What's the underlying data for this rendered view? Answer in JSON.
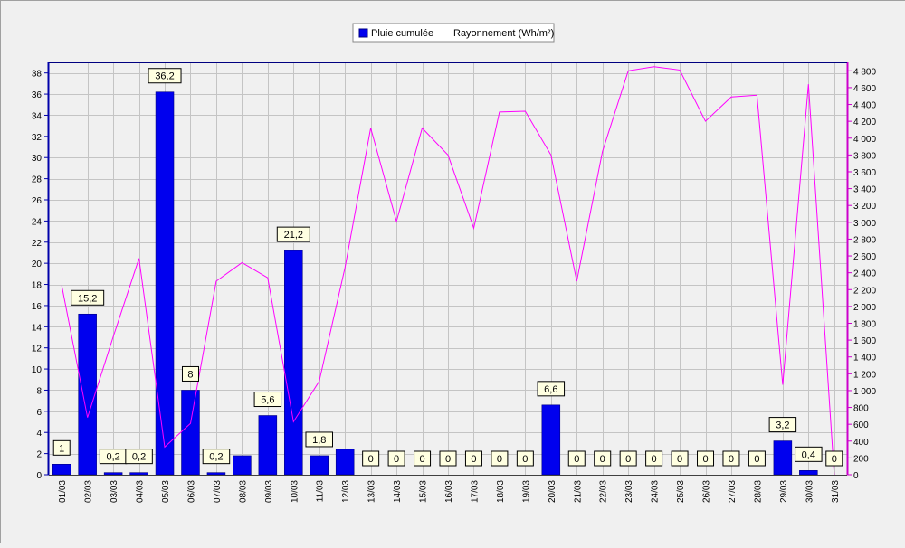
{
  "chart_data": {
    "type": "bar",
    "legend": {
      "position": "top-center",
      "items": [
        {
          "label": "Pluie cumulée",
          "kind": "bar"
        },
        {
          "label": "Rayonnement (Wh/m²)",
          "kind": "line"
        }
      ]
    },
    "categories": [
      "01/03",
      "02/03",
      "03/03",
      "04/03",
      "05/03",
      "06/03",
      "07/03",
      "08/03",
      "09/03",
      "10/03",
      "11/03",
      "12/03",
      "13/03",
      "14/03",
      "15/03",
      "16/03",
      "17/03",
      "18/03",
      "19/03",
      "20/03",
      "21/03",
      "22/03",
      "23/03",
      "24/03",
      "25/03",
      "26/03",
      "27/03",
      "28/03",
      "29/03",
      "30/03",
      "31/03"
    ],
    "series": [
      {
        "name": "Pluie cumulée",
        "type": "bar",
        "axis": "left",
        "color": "#0000ee",
        "values": [
          1,
          15.2,
          0.2,
          0.2,
          36.2,
          8,
          0.2,
          1.8,
          5.6,
          21.2,
          1.8,
          2.4,
          0,
          0,
          0,
          0,
          0,
          0,
          0,
          6.6,
          0,
          0,
          0,
          0,
          0,
          0,
          0,
          0,
          3.2,
          0.4,
          0
        ],
        "data_labels": [
          "1",
          "15,2",
          "0,2",
          "0,2",
          "36,2",
          "8",
          "0,2",
          "",
          "5,6",
          "21,2",
          "1,8",
          "",
          "0",
          "0",
          "0",
          "0",
          "0",
          "0",
          "0",
          "6,6",
          "0",
          "0",
          "0",
          "0",
          "0",
          "0",
          "0",
          "0",
          "3,2",
          "0,4",
          "0"
        ]
      },
      {
        "name": "Rayonnement (Wh/m²)",
        "type": "line",
        "axis": "right",
        "color": "#ff00ff",
        "values": [
          2250,
          680,
          1640,
          2570,
          330,
          610,
          2300,
          2520,
          2340,
          630,
          1110,
          2460,
          4120,
          3010,
          4120,
          3800,
          2930,
          4310,
          4320,
          3800,
          2300,
          3840,
          4800,
          4850,
          4810,
          4200,
          4490,
          4510,
          1070,
          4640,
          0
        ]
      }
    ],
    "y_left": {
      "min": 0,
      "max": 39,
      "ticks": [
        0,
        2,
        4,
        6,
        8,
        10,
        12,
        14,
        16,
        18,
        20,
        22,
        24,
        26,
        28,
        30,
        32,
        34,
        36,
        38
      ]
    },
    "y_right": {
      "min": 0,
      "max": 4900,
      "ticks": [
        0,
        200,
        400,
        600,
        800,
        1000,
        1200,
        1400,
        1600,
        1800,
        2000,
        2200,
        2400,
        2600,
        2800,
        3000,
        3200,
        3400,
        3600,
        3800,
        4000,
        4200,
        4400,
        4600,
        4800
      ],
      "tick_labels": [
        "0",
        "200",
        "400",
        "600",
        "800",
        "1 000",
        "1 200",
        "1 400",
        "1 600",
        "1 800",
        "2 000",
        "2 200",
        "2 400",
        "2 600",
        "2 800",
        "3 000",
        "3 200",
        "3 400",
        "3 600",
        "3 800",
        "4 000",
        "4 200",
        "4 400",
        "4 600",
        "4 800"
      ]
    },
    "grid": true,
    "colors": {
      "background": "#f0f0f0",
      "grid": "#c4c4c4",
      "left_axis": "#0000aa",
      "right_axis": "#cc00cc",
      "label_box": "#ffffe1"
    }
  }
}
